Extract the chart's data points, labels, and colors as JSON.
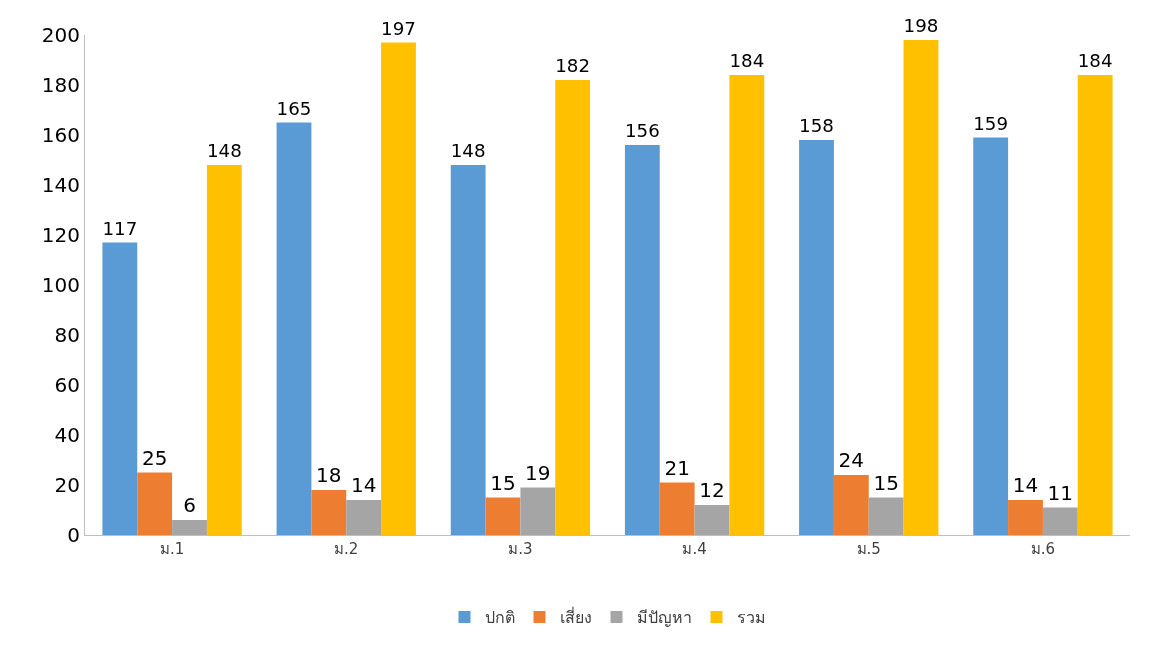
{
  "chart_data": {
    "type": "bar",
    "categories": [
      "ม.1",
      "ม.2",
      "ม.3",
      "ม.4",
      "ม.5",
      "ม.6"
    ],
    "series": [
      {
        "name": "ปกติ",
        "color": "#5b9bd5",
        "values": [
          117,
          165,
          148,
          156,
          158,
          159
        ]
      },
      {
        "name": "เสี่ยง",
        "color": "#ed7d31",
        "values": [
          25,
          18,
          15,
          21,
          24,
          14
        ]
      },
      {
        "name": "มีปัญหา",
        "color": "#a5a5a5",
        "values": [
          6,
          14,
          19,
          12,
          15,
          11
        ]
      },
      {
        "name": "รวม",
        "color": "#ffc000",
        "values": [
          148,
          197,
          182,
          184,
          198,
          184
        ]
      }
    ],
    "ylim": [
      0,
      200
    ],
    "yticks": [
      0,
      20,
      40,
      60,
      80,
      100,
      120,
      140,
      160,
      180,
      200
    ],
    "legend": "bottom",
    "data_labels": true
  }
}
